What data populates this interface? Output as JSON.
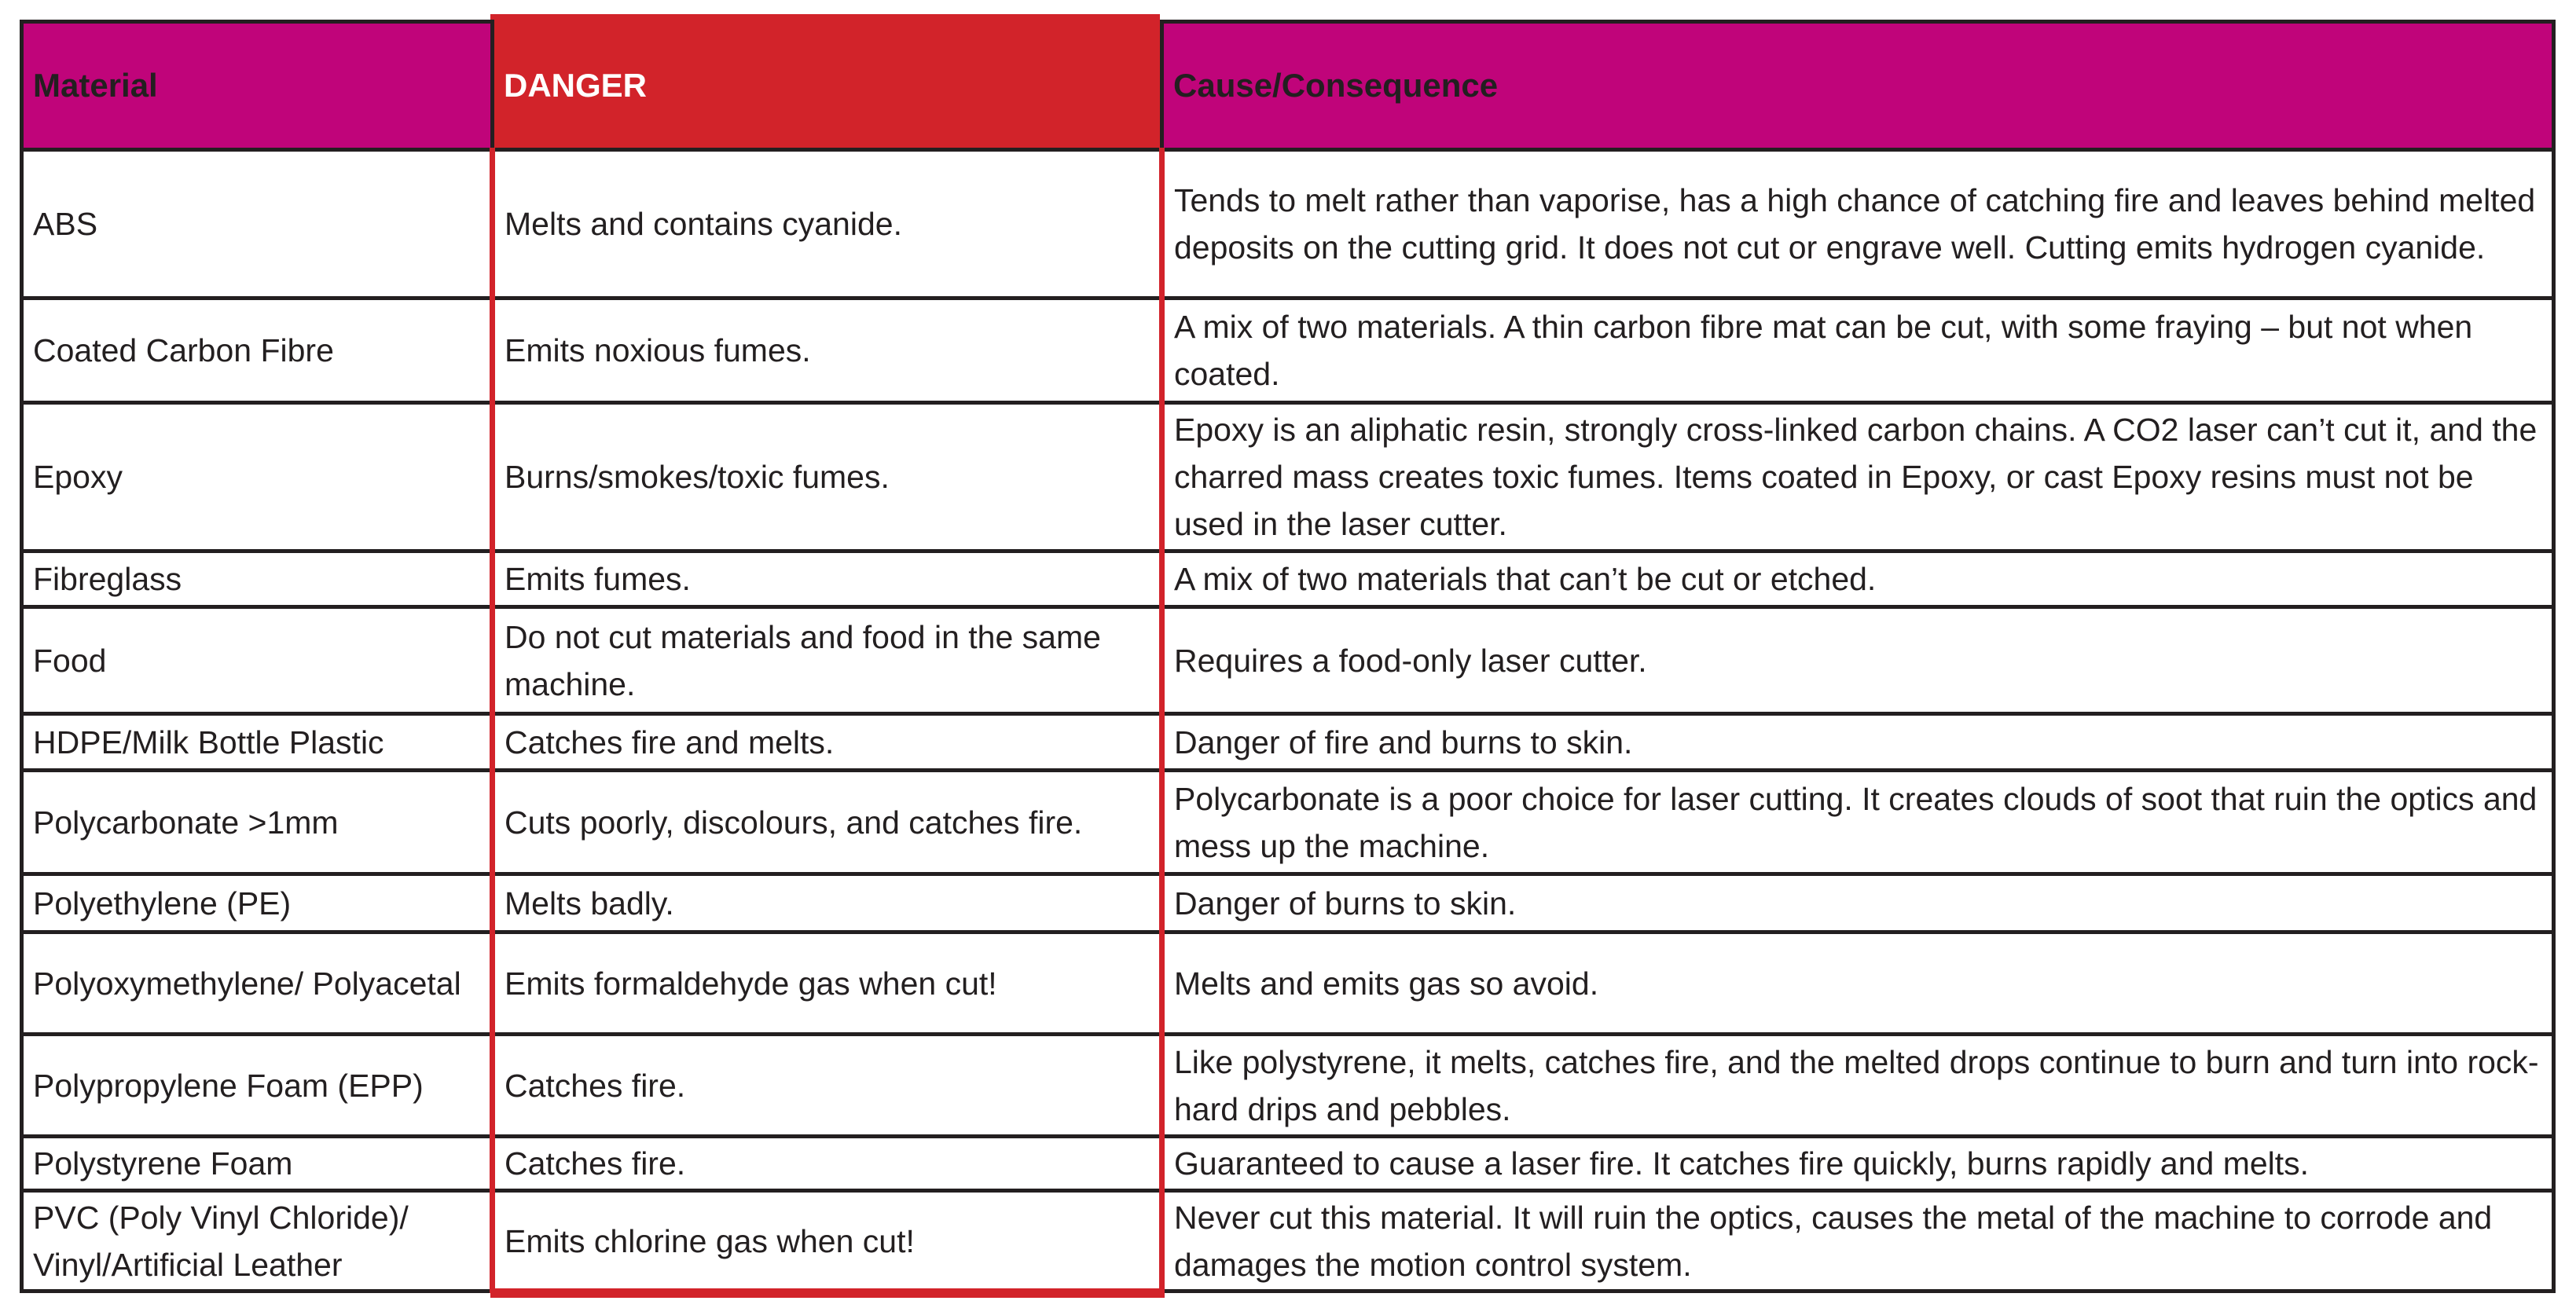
{
  "colors": {
    "header": "#c0047a",
    "danger": "#d2232a",
    "border": "#231f20"
  },
  "headers": {
    "material": "Material",
    "danger": "DANGER",
    "cause": "Cause/Consequence"
  },
  "rows": [
    {
      "material": "ABS",
      "danger": "Melts and contains cyanide.",
      "cause": "Tends to melt rather than vaporise, has a high chance of catching fire and leaves behind melted deposits on the cutting grid. It does not cut or engrave well. Cutting emits hydrogen cyanide."
    },
    {
      "material": "Coated Carbon Fibre",
      "danger": "Emits noxious fumes.",
      "cause": "A mix of two materials. A thin carbon fibre mat can be cut, with some fraying – but not when coated."
    },
    {
      "material": "Epoxy",
      "danger": "Burns/smokes/toxic fumes.",
      "cause": "Epoxy is an aliphatic resin, strongly cross-linked carbon chains. A CO2 laser can’t cut it, and the charred mass creates toxic fumes. Items coated in Epoxy, or cast Epoxy resins must not be used in the laser cutter."
    },
    {
      "material": "Fibreglass",
      "danger": "Emits fumes.",
      "cause": "A mix of two materials that can’t be cut or etched."
    },
    {
      "material": "Food",
      "danger": "Do not cut materials and food in the same machine.",
      "cause": "Requires a food-only laser cutter."
    },
    {
      "material": "HDPE/Milk Bottle Plastic",
      "danger": "Catches fire and melts.",
      "cause": "Danger of fire and burns to skin."
    },
    {
      "material": "Polycarbonate >1mm",
      "danger": "Cuts poorly, discolours, and catches fire.",
      "cause": "Polycarbonate is a poor choice for laser cutting. It creates clouds of soot that ruin the optics and mess up the machine."
    },
    {
      "material": "Polyethylene (PE)",
      "danger": "Melts badly.",
      "cause": "Danger of burns to skin."
    },
    {
      "material": "Polyoxymethylene/ Polyacetal",
      "danger": "Emits formaldehyde gas when cut!",
      "cause": "Melts and emits gas so avoid."
    },
    {
      "material": "Polypropylene Foam (EPP)",
      "danger": "Catches fire.",
      "cause": "Like polystyrene, it melts, catches fire, and the melted drops continue to burn and turn into rock-hard drips and pebbles."
    },
    {
      "material": "Polystyrene Foam",
      "danger": "Catches fire.",
      "cause": "Guaranteed to cause a laser fire. It catches fire quickly, burns rapidly and melts."
    },
    {
      "material": "PVC (Poly Vinyl Chloride)/ Vinyl/Artificial Leather",
      "danger": "Emits chlorine gas when cut!",
      "cause": "Never cut this material. It will ruin the optics, causes the metal of the machine to corrode and damages the motion control system."
    }
  ]
}
